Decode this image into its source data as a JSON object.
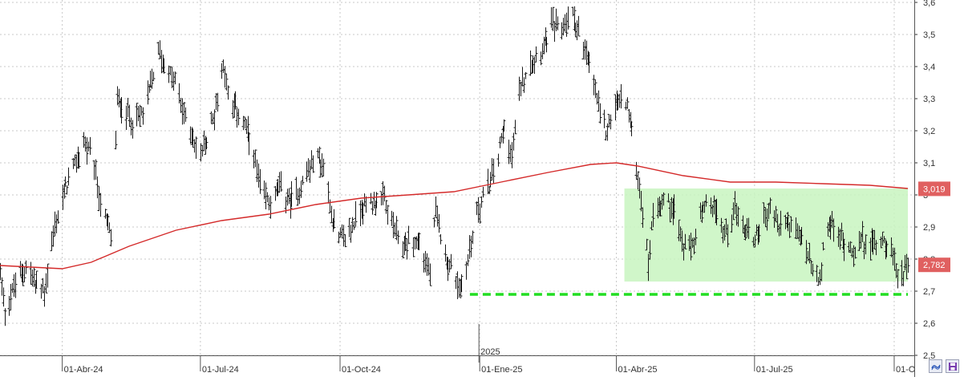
{
  "chart_data": {
    "type": "line",
    "subtype": "ohlc-bars",
    "title": "",
    "xlabel": "",
    "ylabel": "",
    "x_range": [
      "2024-02-20",
      "2025-10-10"
    ],
    "ylim": [
      2.5,
      3.6
    ],
    "grid": true,
    "y_ticks": [
      {
        "value": 2.5,
        "label": "2,5"
      },
      {
        "value": 2.6,
        "label": "2,6"
      },
      {
        "value": 2.7,
        "label": "2,7"
      },
      {
        "value": 2.8,
        "label": "2,8"
      },
      {
        "value": 2.9,
        "label": "2,9"
      },
      {
        "value": 3.0,
        "label": "3"
      },
      {
        "value": 3.1,
        "label": "3,1"
      },
      {
        "value": 3.2,
        "label": "3,2"
      },
      {
        "value": 3.3,
        "label": "3,3"
      },
      {
        "value": 3.4,
        "label": "3,4"
      },
      {
        "value": 3.5,
        "label": "3,5"
      },
      {
        "value": 3.6,
        "label": "3,6"
      }
    ],
    "x_ticks": [
      {
        "date": "2024-04-01",
        "label": "01-Abr-24"
      },
      {
        "date": "2024-07-01",
        "label": "01-Jul-24"
      },
      {
        "date": "2024-10-01",
        "label": "01-Oct-24"
      },
      {
        "date": "2025-01-01",
        "label": "01-Ene-25"
      },
      {
        "date": "2025-04-01",
        "label": "01-Abr-25"
      },
      {
        "date": "2025-07-01",
        "label": "01-Jul-25"
      },
      {
        "date": "2025-10-01",
        "label": "01-O"
      }
    ],
    "year_marker": {
      "date": "2025-01-01",
      "label": "2025"
    },
    "price_path": [
      [
        "2024-02-20",
        2.76
      ],
      [
        "2024-02-23",
        2.64
      ],
      [
        "2024-03-01",
        2.72
      ],
      [
        "2024-03-08",
        2.78
      ],
      [
        "2024-03-14",
        2.72
      ],
      [
        "2024-03-20",
        2.7
      ],
      [
        "2024-03-27",
        2.9
      ],
      [
        "2024-04-03",
        3.02
      ],
      [
        "2024-04-10",
        3.1
      ],
      [
        "2024-04-15",
        3.17
      ],
      [
        "2024-04-22",
        3.08
      ],
      [
        "2024-04-27",
        2.95
      ],
      [
        "2024-05-04",
        2.86
      ],
      [
        "2024-05-07",
        3.3
      ],
      [
        "2024-05-14",
        3.25
      ],
      [
        "2024-05-20",
        3.23
      ],
      [
        "2024-05-26",
        3.28
      ],
      [
        "2024-05-31",
        3.38
      ],
      [
        "2024-06-03",
        3.45
      ],
      [
        "2024-06-10",
        3.38
      ],
      [
        "2024-06-14",
        3.35
      ],
      [
        "2024-06-18",
        3.28
      ],
      [
        "2024-06-24",
        3.2
      ],
      [
        "2024-06-30",
        3.12
      ],
      [
        "2024-07-06",
        3.18
      ],
      [
        "2024-07-12",
        3.3
      ],
      [
        "2024-07-16",
        3.42
      ],
      [
        "2024-07-20",
        3.28
      ],
      [
        "2024-07-26",
        3.26
      ],
      [
        "2024-07-31",
        3.2
      ],
      [
        "2024-08-04",
        3.14
      ],
      [
        "2024-08-10",
        3.0
      ],
      [
        "2024-08-16",
        2.98
      ],
      [
        "2024-08-22",
        3.02
      ],
      [
        "2024-08-29",
        2.98
      ],
      [
        "2024-09-04",
        3.02
      ],
      [
        "2024-09-10",
        3.08
      ],
      [
        "2024-09-16",
        3.12
      ],
      [
        "2024-09-20",
        3.08
      ],
      [
        "2024-09-25",
        2.95
      ],
      [
        "2024-09-30",
        2.86
      ],
      [
        "2024-10-07",
        2.88
      ],
      [
        "2024-10-14",
        2.96
      ],
      [
        "2024-10-22",
        2.98
      ],
      [
        "2024-10-30",
        2.98
      ],
      [
        "2024-11-05",
        2.9
      ],
      [
        "2024-11-10",
        2.83
      ],
      [
        "2024-11-16",
        2.86
      ],
      [
        "2024-11-22",
        2.85
      ],
      [
        "2024-11-29",
        2.75
      ],
      [
        "2024-12-03",
        2.94
      ],
      [
        "2024-12-10",
        2.8
      ],
      [
        "2024-12-16",
        2.74
      ],
      [
        "2024-12-19",
        2.7
      ],
      [
        "2024-12-24",
        2.8
      ],
      [
        "2024-12-30",
        2.95
      ],
      [
        "2025-01-06",
        3.02
      ],
      [
        "2025-01-12",
        3.1
      ],
      [
        "2025-01-17",
        3.22
      ],
      [
        "2025-01-22",
        3.12
      ],
      [
        "2025-01-28",
        3.35
      ],
      [
        "2025-02-03",
        3.42
      ],
      [
        "2025-02-10",
        3.45
      ],
      [
        "2025-02-17",
        3.53
      ],
      [
        "2025-02-24",
        3.52
      ],
      [
        "2025-03-02",
        3.57
      ],
      [
        "2025-03-06",
        3.53
      ],
      [
        "2025-03-10",
        3.45
      ],
      [
        "2025-03-16",
        3.38
      ],
      [
        "2025-03-21",
        3.25
      ],
      [
        "2025-03-25",
        3.2
      ],
      [
        "2025-03-31",
        3.28
      ],
      [
        "2025-04-07",
        3.3
      ],
      [
        "2025-04-11",
        3.2
      ],
      [
        "2025-04-15",
        3.05
      ],
      [
        "2025-04-19",
        2.92
      ],
      [
        "2025-04-22",
        2.78
      ],
      [
        "2025-04-25",
        2.95
      ],
      [
        "2025-05-01",
        2.98
      ],
      [
        "2025-05-08",
        2.97
      ],
      [
        "2025-05-14",
        2.85
      ],
      [
        "2025-05-19",
        2.82
      ],
      [
        "2025-05-26",
        2.92
      ],
      [
        "2025-06-01",
        2.98
      ],
      [
        "2025-06-06",
        2.93
      ],
      [
        "2025-06-12",
        2.88
      ],
      [
        "2025-06-18",
        2.96
      ],
      [
        "2025-06-24",
        2.9
      ],
      [
        "2025-06-30",
        2.86
      ],
      [
        "2025-07-06",
        2.92
      ],
      [
        "2025-07-12",
        2.97
      ],
      [
        "2025-07-16",
        2.9
      ],
      [
        "2025-07-22",
        2.92
      ],
      [
        "2025-07-28",
        2.88
      ],
      [
        "2025-08-02",
        2.86
      ],
      [
        "2025-08-08",
        2.76
      ],
      [
        "2025-08-13",
        2.72
      ],
      [
        "2025-08-17",
        2.92
      ],
      [
        "2025-08-23",
        2.88
      ],
      [
        "2025-08-29",
        2.85
      ],
      [
        "2025-09-04",
        2.83
      ],
      [
        "2025-09-10",
        2.86
      ],
      [
        "2025-09-16",
        2.84
      ],
      [
        "2025-09-22",
        2.87
      ],
      [
        "2025-09-28",
        2.84
      ],
      [
        "2025-10-02",
        2.76
      ],
      [
        "2025-10-05",
        2.74
      ],
      [
        "2025-10-10",
        2.8
      ]
    ],
    "moving_average": {
      "color": "#d42a2a",
      "values": [
        [
          "2024-02-20",
          2.78
        ],
        [
          "2024-04-01",
          2.77
        ],
        [
          "2024-04-20",
          2.79
        ],
        [
          "2024-05-15",
          2.84
        ],
        [
          "2024-06-15",
          2.89
        ],
        [
          "2024-07-15",
          2.92
        ],
        [
          "2024-08-15",
          2.94
        ],
        [
          "2024-09-15",
          2.97
        ],
        [
          "2024-10-15",
          2.99
        ],
        [
          "2024-11-15",
          3.0
        ],
        [
          "2024-12-15",
          3.01
        ],
        [
          "2025-01-15",
          3.04
        ],
        [
          "2025-02-15",
          3.07
        ],
        [
          "2025-03-15",
          3.095
        ],
        [
          "2025-04-01",
          3.1
        ],
        [
          "2025-04-15",
          3.09
        ],
        [
          "2025-05-15",
          3.06
        ],
        [
          "2025-06-15",
          3.04
        ],
        [
          "2025-07-15",
          3.04
        ],
        [
          "2025-08-15",
          3.035
        ],
        [
          "2025-09-15",
          3.03
        ],
        [
          "2025-10-10",
          3.02
        ]
      ]
    },
    "range_box": {
      "x_start": "2025-04-01",
      "x_end": "2025-10-10",
      "y_low": 2.73,
      "y_high": 3.02,
      "color": "#c8f5c0"
    },
    "support_line": {
      "x_start": "2024-12-16",
      "x_end": "2025-10-10",
      "y": 2.69,
      "color": "#22dd22",
      "style": "dashed"
    },
    "price_tags": [
      {
        "value": 3.019,
        "label": "3,019",
        "color": "#e06060"
      },
      {
        "value": 2.782,
        "label": "2,782",
        "color": "#e06060"
      }
    ]
  },
  "toolbar": {
    "btn1_icon": "wave-icon",
    "btn2_icon": "save-icon"
  }
}
